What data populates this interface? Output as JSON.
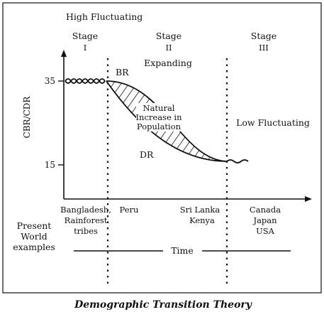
{
  "caption": "Demographic Transition Theory",
  "top_label": "High Fluctuating",
  "stages": [
    {
      "word": "Stage",
      "numeral": "I"
    },
    {
      "word": "Stage",
      "numeral": "II"
    },
    {
      "word": "Stage",
      "numeral": "III"
    }
  ],
  "region_labels": {
    "expanding": "Expanding",
    "low_fluctuating": "Low Fluctuating"
  },
  "curve_labels": {
    "br": "BR",
    "dr": "DR",
    "natural_increase": [
      "Natural",
      "Increase in",
      "Population"
    ]
  },
  "y_axis": {
    "label": "CBR/CDR",
    "ticks": [
      "35",
      "15"
    ]
  },
  "present_world_label": [
    "Present",
    "World",
    "examples"
  ],
  "examples": [
    [
      "Bangladesh,",
      "Rainforest",
      "tribes"
    ],
    [
      "Peru"
    ],
    [
      "Sri Lanka",
      "Kenya"
    ],
    [
      "Canada",
      "Japan",
      "USA"
    ]
  ],
  "time_label": "Time"
}
